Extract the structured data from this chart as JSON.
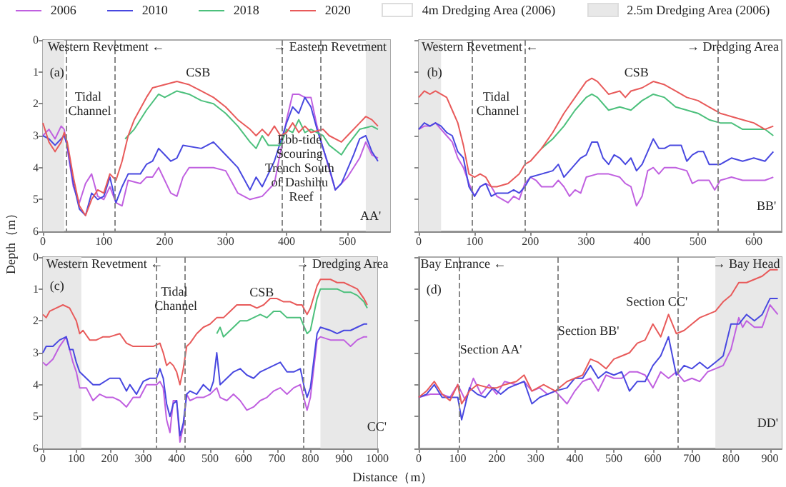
{
  "chart_data": [
    {
      "type": "line",
      "legend": "top",
      "ylabel": "Depth（m）",
      "marker": "none",
      "line_style": "solid",
      "grid": false,
      "xlim": [
        0,
        570
      ],
      "ylim": [
        6,
        0
      ],
      "xticks": [
        0,
        100,
        200,
        300,
        400,
        500
      ],
      "yticks": [
        0,
        1,
        2,
        3,
        4,
        5,
        6
      ],
      "series": [
        {
          "name": "2006",
          "color": "#c060e0",
          "x": [
            0,
            10,
            20,
            30,
            35,
            40,
            50,
            60,
            70,
            80,
            90,
            100,
            110,
            120,
            130,
            140,
            160,
            170,
            180,
            190,
            200,
            210,
            220,
            230,
            240,
            260,
            280,
            300,
            320,
            340,
            360,
            380,
            390,
            400,
            410,
            420,
            430,
            440,
            450,
            460,
            480,
            500,
            520,
            530,
            540,
            550
          ],
          "values": [
            3.0,
            2.8,
            3.1,
            2.7,
            2.8,
            3.4,
            4.6,
            5.1,
            4.5,
            4.2,
            4.9,
            5.0,
            4.6,
            5.1,
            5.2,
            4.4,
            4.5,
            4.3,
            4.3,
            4.0,
            4.4,
            4.8,
            4.9,
            4.3,
            4.0,
            4.0,
            4.0,
            4.1,
            4.8,
            5.0,
            4.9,
            4.5,
            3.5,
            2.5,
            1.7,
            1.7,
            1.8,
            1.8,
            2.7,
            3.4,
            4.7,
            4.3,
            3.7,
            3.2,
            3.6,
            3.7
          ]
        },
        {
          "name": "2010",
          "color": "#4848e0",
          "x": [
            0,
            10,
            20,
            30,
            35,
            40,
            50,
            60,
            70,
            80,
            90,
            100,
            110,
            120,
            130,
            140,
            160,
            170,
            180,
            190,
            200,
            210,
            220,
            230,
            260,
            280,
            300,
            320,
            340,
            350,
            360,
            380,
            390,
            400,
            410,
            420,
            430,
            440,
            450,
            470,
            480,
            490,
            510,
            520,
            530,
            540,
            550
          ],
          "values": [
            3.0,
            3.1,
            3.3,
            3.1,
            3.0,
            3.3,
            4.5,
            5.3,
            5.5,
            4.8,
            5.0,
            4.9,
            4.3,
            5.1,
            4.6,
            4.2,
            4.2,
            3.9,
            3.8,
            3.4,
            3.6,
            3.8,
            3.7,
            3.3,
            3.4,
            3.2,
            3.6,
            4.0,
            4.7,
            4.3,
            4.6,
            3.8,
            3.2,
            2.6,
            2.1,
            2.3,
            1.8,
            2.1,
            2.8,
            4.0,
            4.7,
            4.5,
            3.6,
            3.1,
            3.0,
            3.5,
            3.8
          ]
        },
        {
          "name": "2018",
          "color": "#4cc07c",
          "x": [
            135,
            150,
            170,
            190,
            200,
            220,
            240,
            260,
            280,
            300,
            320,
            340,
            350,
            360,
            370,
            380,
            390,
            400,
            410,
            420,
            430,
            440,
            460,
            470,
            490,
            500,
            520,
            540,
            550
          ],
          "values": [
            3.1,
            2.8,
            2.2,
            1.7,
            1.8,
            1.6,
            1.7,
            1.9,
            2.0,
            2.3,
            2.7,
            3.2,
            3.4,
            3.0,
            3.3,
            3.3,
            3.3,
            2.8,
            2.9,
            2.5,
            2.9,
            2.8,
            3.0,
            3.3,
            3.6,
            3.3,
            2.8,
            2.7,
            2.8
          ]
        },
        {
          "name": "2020",
          "color": "#e85a5a",
          "x": [
            0,
            10,
            20,
            30,
            35,
            40,
            50,
            60,
            70,
            80,
            90,
            100,
            110,
            120,
            130,
            140,
            150,
            170,
            180,
            200,
            220,
            240,
            260,
            280,
            300,
            320,
            340,
            350,
            360,
            370,
            380,
            390,
            400,
            410,
            420,
            430,
            440,
            460,
            470,
            490,
            500,
            520,
            530,
            540,
            550
          ],
          "values": [
            2.6,
            3.2,
            3.5,
            3.2,
            2.9,
            3.2,
            4.3,
            5.2,
            5.5,
            5.0,
            4.7,
            4.8,
            4.2,
            4.4,
            3.8,
            3.0,
            2.5,
            1.8,
            1.5,
            1.4,
            1.3,
            1.4,
            1.6,
            1.8,
            2.1,
            2.5,
            2.8,
            3.0,
            2.8,
            3.0,
            2.7,
            3.0,
            2.9,
            2.6,
            2.9,
            2.7,
            2.9,
            2.8,
            3.0,
            3.2,
            3.0,
            2.6,
            2.4,
            2.5,
            2.7
          ]
        }
      ],
      "bands": [
        {
          "axis": "x",
          "from": 0,
          "to": 35,
          "label": "2.5m Dredging Area (2006)",
          "color": "#e8e8e8"
        },
        {
          "axis": "x",
          "from": 530,
          "to": 570,
          "color": "#e8e8e8"
        }
      ],
      "ref_lines": [
        {
          "axis": "x",
          "value": 37,
          "color": "#888888",
          "line_style": "dashed"
        },
        {
          "axis": "x",
          "value": 117,
          "color": "#888888",
          "line_style": "dashed"
        },
        {
          "axis": "x",
          "value": 392,
          "color": "#888888",
          "line_style": "dashed"
        },
        {
          "axis": "x",
          "value": 456,
          "color": "#888888",
          "line_style": "dashed"
        }
      ],
      "annotations": [
        "Western Revetment ←",
        "→ Eastern Revetment",
        "(a)",
        "Tidal Channel",
        "CSB",
        "Ebb-tide Scouring Trench South of Dashihu Reef",
        "AA'",
        "4m Dredging Area (2006)"
      ]
    },
    {
      "type": "line",
      "marker": "none",
      "line_style": "solid",
      "grid": false,
      "tick_labels": "x",
      "xlim": [
        0,
        650
      ],
      "ylim": [
        6,
        0
      ],
      "xticks": [
        0,
        100,
        200,
        300,
        400,
        500,
        600
      ],
      "yticks": [
        0,
        1,
        2,
        3,
        4,
        5,
        6
      ],
      "series": [
        {
          "name": "2006",
          "color": "#c060e0",
          "x": [
            0,
            10,
            20,
            30,
            40,
            50,
            60,
            70,
            80,
            90,
            100,
            110,
            120,
            130,
            140,
            150,
            160,
            170,
            180,
            190,
            200,
            210,
            220,
            240,
            250,
            260,
            270,
            280,
            290,
            300,
            320,
            340,
            360,
            370,
            380,
            390,
            400,
            410,
            420,
            430,
            440,
            460,
            480,
            490,
            500,
            520,
            530,
            540,
            560,
            580,
            600,
            620,
            635
          ],
          "values": [
            2.8,
            2.7,
            2.7,
            2.6,
            2.8,
            3.0,
            3.2,
            3.7,
            4.0,
            4.5,
            4.9,
            4.6,
            4.5,
            4.6,
            4.9,
            5.0,
            5.1,
            4.9,
            5.0,
            4.5,
            4.3,
            4.4,
            4.6,
            4.6,
            4.4,
            4.6,
            4.9,
            4.7,
            4.8,
            4.3,
            4.2,
            4.2,
            4.3,
            4.5,
            4.6,
            5.2,
            4.9,
            4.1,
            4.0,
            4.2,
            4.0,
            4.0,
            4.1,
            4.5,
            4.4,
            4.4,
            4.7,
            4.4,
            4.3,
            4.4,
            4.4,
            4.4,
            4.3
          ]
        },
        {
          "name": "2010",
          "color": "#4848e0",
          "x": [
            0,
            10,
            20,
            30,
            40,
            50,
            60,
            70,
            80,
            90,
            100,
            110,
            120,
            130,
            140,
            160,
            170,
            180,
            190,
            200,
            220,
            240,
            250,
            260,
            270,
            280,
            290,
            300,
            310,
            320,
            330,
            340,
            350,
            360,
            370,
            380,
            390,
            400,
            410,
            420,
            430,
            440,
            450,
            470,
            480,
            490,
            500,
            510,
            520,
            540,
            560,
            580,
            600,
            620,
            635
          ],
          "values": [
            2.8,
            2.6,
            2.7,
            2.6,
            2.7,
            2.9,
            3.0,
            3.5,
            3.7,
            4.6,
            4.9,
            4.6,
            4.5,
            4.9,
            4.8,
            4.8,
            4.7,
            4.8,
            4.6,
            4.3,
            4.2,
            4.1,
            3.9,
            4.3,
            4.1,
            3.9,
            3.7,
            3.6,
            3.2,
            3.2,
            3.7,
            3.9,
            3.6,
            3.7,
            3.9,
            3.7,
            4.1,
            3.9,
            3.5,
            3.1,
            3.4,
            3.4,
            3.3,
            3.3,
            3.8,
            3.6,
            3.5,
            3.5,
            3.9,
            3.9,
            3.7,
            3.8,
            3.7,
            3.8,
            3.5
          ]
        },
        {
          "name": "2018",
          "color": "#4cc07c",
          "x": [
            220,
            240,
            260,
            280,
            300,
            310,
            320,
            340,
            360,
            380,
            400,
            420,
            440,
            460,
            480,
            500,
            520,
            540,
            560,
            580,
            600,
            620,
            635
          ],
          "values": [
            3.4,
            3.1,
            2.7,
            2.2,
            1.8,
            1.7,
            1.8,
            2.2,
            2.1,
            2.2,
            1.9,
            1.7,
            1.8,
            2.1,
            2.2,
            2.3,
            2.5,
            2.6,
            2.6,
            2.8,
            2.8,
            2.8,
            3.0
          ]
        },
        {
          "name": "2020",
          "color": "#e85a5a",
          "x": [
            0,
            10,
            20,
            30,
            40,
            50,
            60,
            70,
            80,
            90,
            100,
            110,
            120,
            130,
            140,
            160,
            180,
            190,
            200,
            220,
            240,
            260,
            280,
            300,
            310,
            320,
            340,
            360,
            370,
            380,
            400,
            420,
            440,
            460,
            480,
            500,
            520,
            540,
            560,
            580,
            600,
            620,
            635
          ],
          "values": [
            1.8,
            1.6,
            1.7,
            1.6,
            1.7,
            1.8,
            2.2,
            2.6,
            3.3,
            4.2,
            4.3,
            4.2,
            4.3,
            4.6,
            4.6,
            4.5,
            4.2,
            3.9,
            3.8,
            3.4,
            2.9,
            2.3,
            1.8,
            1.3,
            1.2,
            1.3,
            1.7,
            1.6,
            1.8,
            1.6,
            1.5,
            1.3,
            1.4,
            1.6,
            1.8,
            1.9,
            2.1,
            2.3,
            2.4,
            2.5,
            2.6,
            2.8,
            2.7
          ]
        }
      ],
      "bands": [
        {
          "axis": "x",
          "from": 0,
          "to": 40,
          "color": "#e8e8e8"
        }
      ],
      "ref_lines": [
        {
          "axis": "x",
          "value": 95,
          "color": "#888888",
          "line_style": "dashed"
        },
        {
          "axis": "x",
          "value": 190,
          "color": "#888888",
          "line_style": "dashed"
        },
        {
          "axis": "x",
          "value": 535,
          "color": "#888888",
          "line_style": "dashed"
        }
      ],
      "annotations": [
        "Western Revetment ←",
        "→ Dredging Area",
        "(b)",
        "Tidal Channel",
        "CSB",
        "BB'"
      ]
    },
    {
      "type": "line",
      "marker": "none",
      "line_style": "solid",
      "grid": false,
      "xlabel": "Distance（m）",
      "xlim": [
        0,
        1000
      ],
      "ylim": [
        6,
        0
      ],
      "xticks": [
        0,
        100,
        200,
        300,
        400,
        500,
        600,
        700,
        800,
        900,
        1000
      ],
      "yticks": [
        0,
        1,
        2,
        3,
        4,
        5,
        6
      ],
      "series": [
        {
          "name": "2006",
          "color": "#c060e0",
          "x": [
            0,
            10,
            30,
            50,
            70,
            80,
            90,
            100,
            110,
            130,
            150,
            170,
            190,
            210,
            230,
            250,
            270,
            290,
            310,
            340,
            350,
            360,
            370,
            380,
            390,
            400,
            410,
            420,
            430,
            440,
            460,
            480,
            500,
            520,
            530,
            550,
            570,
            590,
            610,
            630,
            650,
            670,
            690,
            710,
            730,
            750,
            770,
            780,
            790,
            800,
            820,
            830,
            860,
            880,
            900,
            920,
            940,
            960,
            970
          ],
          "values": [
            3.3,
            3.4,
            3.2,
            2.8,
            2.5,
            2.9,
            3.3,
            3.6,
            4.1,
            4.1,
            4.5,
            4.3,
            4.4,
            4.4,
            4.5,
            4.7,
            4.4,
            4.4,
            4.0,
            4.0,
            3.9,
            4.1,
            5.1,
            5.5,
            4.5,
            4.5,
            5.8,
            5.3,
            4.3,
            4.5,
            4.4,
            4.4,
            4.3,
            4.1,
            4.4,
            4.5,
            4.3,
            4.5,
            4.8,
            4.7,
            4.5,
            4.4,
            4.2,
            4.1,
            4.3,
            4.1,
            4.0,
            4.4,
            4.8,
            4.4,
            2.6,
            2.5,
            2.6,
            2.6,
            2.6,
            2.8,
            2.6,
            2.5,
            2.5
          ]
        },
        {
          "name": "2010",
          "color": "#4848e0",
          "x": [
            0,
            10,
            30,
            50,
            70,
            80,
            90,
            100,
            110,
            120,
            150,
            170,
            200,
            230,
            250,
            260,
            280,
            300,
            320,
            340,
            350,
            360,
            370,
            380,
            390,
            400,
            410,
            420,
            430,
            440,
            460,
            480,
            500,
            510,
            520,
            530,
            550,
            570,
            590,
            610,
            630,
            650,
            670,
            690,
            710,
            730,
            750,
            770,
            780,
            790,
            800,
            820,
            830,
            860,
            880,
            900,
            920,
            940,
            960,
            970
          ],
          "values": [
            3.0,
            2.8,
            2.8,
            2.6,
            2.5,
            2.9,
            2.9,
            3.3,
            3.6,
            3.7,
            4.0,
            4.0,
            3.8,
            3.8,
            4.2,
            4.0,
            4.3,
            3.9,
            3.8,
            3.8,
            3.5,
            3.8,
            4.6,
            5.0,
            4.6,
            4.5,
            5.6,
            5.2,
            4.3,
            4.2,
            4.3,
            4.0,
            4.2,
            3.9,
            3.0,
            4.0,
            3.8,
            3.6,
            3.5,
            3.7,
            3.8,
            3.6,
            3.5,
            3.4,
            3.3,
            3.6,
            3.6,
            3.5,
            4.0,
            4.4,
            4.1,
            2.4,
            2.2,
            2.3,
            2.4,
            2.3,
            2.3,
            2.2,
            2.1,
            2.1
          ]
        },
        {
          "name": "2018",
          "color": "#4cc07c",
          "x": [
            520,
            530,
            540,
            550,
            570,
            590,
            610,
            630,
            650,
            670,
            690,
            710,
            730,
            750,
            770,
            790,
            800,
            820,
            830,
            860,
            880,
            900,
            920,
            940,
            960,
            970
          ],
          "values": [
            2.4,
            2.2,
            2.5,
            2.4,
            2.2,
            2.0,
            2.0,
            1.9,
            1.8,
            1.9,
            1.7,
            1.7,
            1.9,
            1.9,
            1.9,
            2.4,
            2.3,
            1.3,
            1.0,
            1.0,
            1.0,
            1.1,
            1.1,
            1.2,
            1.4,
            1.6
          ]
        },
        {
          "name": "2020",
          "color": "#e85a5a",
          "x": [
            0,
            10,
            20,
            40,
            60,
            80,
            90,
            100,
            110,
            120,
            140,
            160,
            180,
            200,
            230,
            250,
            270,
            300,
            330,
            350,
            360,
            370,
            380,
            390,
            400,
            410,
            420,
            430,
            440,
            460,
            480,
            500,
            520,
            540,
            560,
            580,
            600,
            620,
            640,
            660,
            680,
            700,
            720,
            740,
            760,
            775,
            790,
            800,
            820,
            830,
            860,
            880,
            900,
            920,
            940,
            960,
            970
          ],
          "values": [
            1.8,
            1.9,
            1.7,
            1.6,
            1.5,
            1.6,
            1.8,
            2.0,
            2.4,
            2.3,
            2.6,
            2.6,
            2.5,
            2.5,
            2.4,
            2.7,
            2.8,
            2.8,
            2.8,
            2.7,
            3.0,
            3.4,
            3.3,
            3.4,
            3.6,
            4.0,
            3.5,
            2.8,
            2.7,
            2.4,
            2.2,
            2.1,
            1.9,
            1.9,
            1.7,
            1.5,
            1.5,
            1.5,
            1.6,
            1.5,
            1.3,
            1.3,
            1.4,
            1.4,
            1.5,
            1.5,
            1.8,
            1.6,
            0.9,
            0.7,
            0.7,
            0.8,
            0.8,
            0.9,
            1.0,
            1.3,
            1.5
          ]
        }
      ],
      "bands": [
        {
          "axis": "x",
          "from": 0,
          "to": 115,
          "color": "#e8e8e8"
        },
        {
          "axis": "x",
          "from": 830,
          "to": 1000,
          "color": "#e8e8e8"
        }
      ],
      "ref_lines": [
        {
          "axis": "x",
          "value": 340,
          "color": "#888888",
          "line_style": "dashed"
        },
        {
          "axis": "x",
          "value": 425,
          "color": "#888888",
          "line_style": "dashed"
        },
        {
          "axis": "x",
          "value": 780,
          "color": "#888888",
          "line_style": "dashed"
        }
      ],
      "annotations": [
        "Western Revetment ←",
        "→ Dredging Area",
        "(c)",
        "Tidal Channel",
        "CSB",
        "CC'"
      ]
    },
    {
      "type": "line",
      "marker": "none",
      "line_style": "solid",
      "grid": false,
      "tick_labels": "x",
      "xlim": [
        0,
        930
      ],
      "ylim": [
        6,
        0
      ],
      "xticks": [
        0,
        100,
        200,
        300,
        400,
        500,
        600,
        700,
        800,
        900
      ],
      "yticks": [
        0,
        1,
        2,
        3,
        4,
        5,
        6
      ],
      "series": [
        {
          "name": "2006",
          "color": "#c060e0",
          "x": [
            0,
            30,
            60,
            80,
            100,
            120,
            140,
            160,
            180,
            200,
            220,
            250,
            270,
            290,
            310,
            330,
            350,
            380,
            400,
            420,
            440,
            460,
            480,
            500,
            520,
            540,
            560,
            580,
            600,
            620,
            640,
            660,
            680,
            700,
            720,
            740,
            760,
            780,
            800,
            810,
            820,
            830,
            840,
            860,
            880,
            900,
            920
          ],
          "values": [
            4.4,
            4.3,
            4.3,
            4.4,
            4.0,
            4.5,
            3.8,
            4.3,
            4.0,
            4.3,
            3.9,
            4.0,
            3.9,
            4.2,
            4.1,
            4.3,
            4.2,
            4.6,
            4.2,
            3.9,
            3.8,
            4.2,
            3.7,
            3.8,
            3.8,
            3.6,
            3.6,
            3.7,
            4.1,
            3.6,
            3.8,
            3.6,
            3.9,
            3.8,
            3.9,
            3.6,
            3.5,
            3.4,
            2.9,
            2.4,
            1.9,
            2.2,
            2.0,
            2.2,
            2.2,
            1.5,
            1.8
          ]
        },
        {
          "name": "2010",
          "color": "#4848e0",
          "x": [
            0,
            20,
            40,
            60,
            80,
            100,
            110,
            130,
            150,
            170,
            190,
            210,
            230,
            250,
            270,
            290,
            310,
            330,
            350,
            380,
            400,
            420,
            440,
            460,
            480,
            500,
            520,
            540,
            560,
            580,
            600,
            620,
            640,
            660,
            680,
            700,
            720,
            740,
            760,
            780,
            800,
            820,
            840,
            860,
            880,
            900,
            920
          ],
          "values": [
            4.4,
            4.3,
            4.0,
            4.4,
            4.4,
            4.4,
            5.1,
            4.1,
            4.3,
            4.4,
            4.1,
            4.3,
            4.1,
            4.0,
            3.9,
            4.6,
            4.4,
            4.3,
            4.2,
            4.1,
            3.8,
            3.8,
            3.4,
            3.8,
            3.6,
            3.7,
            3.6,
            4.2,
            3.9,
            3.9,
            3.4,
            3.1,
            2.5,
            3.7,
            3.4,
            3.5,
            3.3,
            3.5,
            3.3,
            3.1,
            2.1,
            2.1,
            1.8,
            2.0,
            1.8,
            1.3,
            1.3
          ]
        },
        {
          "name": "2020",
          "color": "#e85a5a",
          "x": [
            0,
            20,
            40,
            60,
            80,
            100,
            110,
            130,
            150,
            180,
            200,
            220,
            250,
            270,
            290,
            320,
            350,
            380,
            400,
            420,
            440,
            460,
            480,
            500,
            520,
            540,
            560,
            580,
            600,
            620,
            640,
            660,
            680,
            700,
            720,
            740,
            760,
            780,
            800,
            820,
            840,
            860,
            880,
            900,
            920
          ],
          "values": [
            4.4,
            4.2,
            3.9,
            4.3,
            4.5,
            4.0,
            4.6,
            4.2,
            4.0,
            4.1,
            4.1,
            4.0,
            3.9,
            3.7,
            4.2,
            4.0,
            4.2,
            3.9,
            3.8,
            3.7,
            3.2,
            3.3,
            3.5,
            3.2,
            3.1,
            3.0,
            2.7,
            2.6,
            2.1,
            2.5,
            1.8,
            2.4,
            2.3,
            2.1,
            1.9,
            1.8,
            1.7,
            1.4,
            1.2,
            0.8,
            0.8,
            0.7,
            0.6,
            0.4,
            0.4
          ]
        }
      ],
      "bands": [
        {
          "axis": "x",
          "from": 760,
          "to": 930,
          "color": "#e8e8e8"
        }
      ],
      "ref_lines": [
        {
          "axis": "x",
          "value": 105,
          "color": "#888888",
          "line_style": "dashed"
        },
        {
          "axis": "x",
          "value": 357,
          "color": "#888888",
          "line_style": "dashed"
        },
        {
          "axis": "x",
          "value": 665,
          "color": "#888888",
          "line_style": "dashed"
        }
      ],
      "annotations": [
        "Bay Entrance ←",
        "→ Bay Head",
        "(d)",
        "Section AA'",
        "Section BB'",
        "Section CC'",
        "DD'"
      ]
    }
  ]
}
